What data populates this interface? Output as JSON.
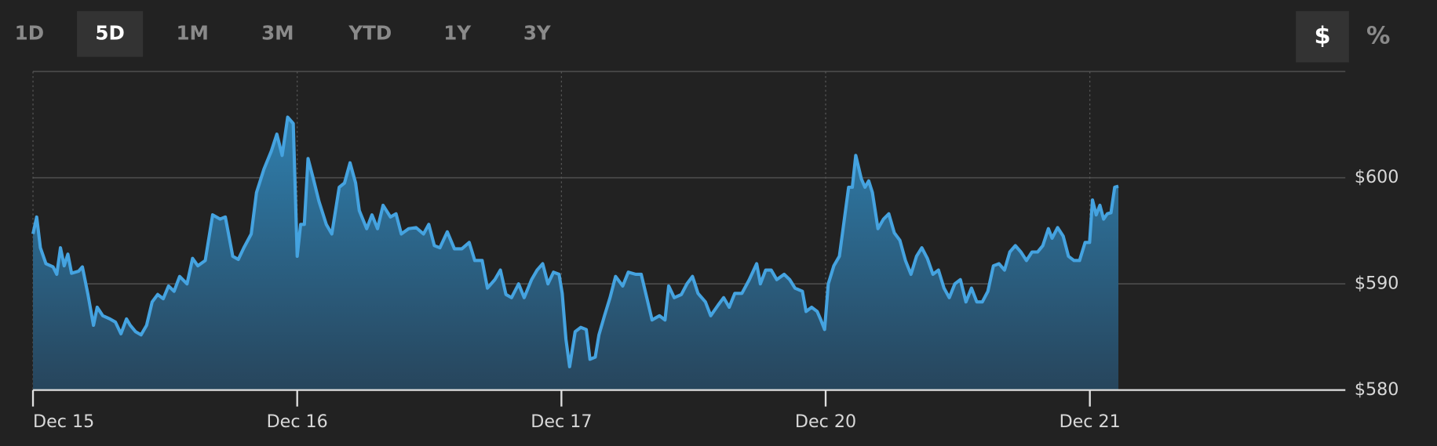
{
  "tabs": [
    "1D",
    "5D",
    "1M",
    "3M",
    "YTD",
    "1Y",
    "3Y"
  ],
  "selected_tab": 1,
  "units": [
    "$",
    "%"
  ],
  "selected_unit": 0,
  "chart_data": {
    "type": "area",
    "color": "#45a3e0",
    "grid": true,
    "xlim": [
      0,
      4.967
    ],
    "ylim": [
      580,
      610
    ],
    "xticks": [
      {
        "value": 0,
        "label": "Dec 15"
      },
      {
        "value": 1,
        "label": "Dec 16"
      },
      {
        "value": 2,
        "label": "Dec 17"
      },
      {
        "value": 3,
        "label": "Dec 20"
      },
      {
        "value": 4,
        "label": "Dec 21"
      }
    ],
    "yticks": [
      {
        "value": 580,
        "label": "$580"
      },
      {
        "value": 590,
        "label": "$590"
      },
      {
        "value": 600,
        "label": "$600"
      }
    ],
    "x": [
      0,
      0.014,
      0.028,
      0.049,
      0.076,
      0.09,
      0.104,
      0.118,
      0.132,
      0.146,
      0.173,
      0.187,
      0.208,
      0.229,
      0.243,
      0.264,
      0.291,
      0.312,
      0.333,
      0.354,
      0.368,
      0.388,
      0.409,
      0.43,
      0.451,
      0.472,
      0.493,
      0.513,
      0.534,
      0.555,
      0.583,
      0.604,
      0.624,
      0.652,
      0.68,
      0.708,
      0.728,
      0.756,
      0.777,
      0.798,
      0.826,
      0.846,
      0.874,
      0.902,
      0.923,
      0.943,
      0.964,
      0.985,
      1,
      1.013,
      1.027,
      1.041,
      1.061,
      1.082,
      1.11,
      1.131,
      1.159,
      1.179,
      1.2,
      1.221,
      1.235,
      1.263,
      1.283,
      1.304,
      1.325,
      1.353,
      1.374,
      1.394,
      1.422,
      1.45,
      1.478,
      1.498,
      1.519,
      1.54,
      1.568,
      1.595,
      1.623,
      1.651,
      1.672,
      1.7,
      1.72,
      1.748,
      1.769,
      1.79,
      1.811,
      1.838,
      1.859,
      1.887,
      1.908,
      1.929,
      1.949,
      1.97,
      1.991,
      2.003,
      2.017,
      2.031,
      2.052,
      2.073,
      2.094,
      2.108,
      2.128,
      2.142,
      2.163,
      2.184,
      2.205,
      2.232,
      2.253,
      2.281,
      2.302,
      2.323,
      2.343,
      2.371,
      2.392,
      2.406,
      2.427,
      2.454,
      2.475,
      2.496,
      2.517,
      2.545,
      2.565,
      2.593,
      2.614,
      2.635,
      2.656,
      2.683,
      2.711,
      2.739,
      2.753,
      2.773,
      2.794,
      2.815,
      2.843,
      2.864,
      2.884,
      2.912,
      2.926,
      2.947,
      2.968,
      2.982,
      2.996,
      3.01,
      3.031,
      3.052,
      3.066,
      3.087,
      3.101,
      3.114,
      3.135,
      3.149,
      3.163,
      3.177,
      3.198,
      3.219,
      3.239,
      3.26,
      3.281,
      3.302,
      3.323,
      3.344,
      3.364,
      3.385,
      3.406,
      3.427,
      3.448,
      3.468,
      3.489,
      3.51,
      3.531,
      3.552,
      3.572,
      3.593,
      3.614,
      3.635,
      3.656,
      3.677,
      3.697,
      3.718,
      3.739,
      3.76,
      3.781,
      3.802,
      3.822,
      3.843,
      3.857,
      3.878,
      3.899,
      3.919,
      3.94,
      3.961,
      3.982,
      3.999,
      4.01,
      4.024,
      4.038,
      4.052,
      4.066,
      4.08,
      4.094,
      4.108
    ],
    "values": [
      594.7,
      596.3,
      593.4,
      591.9,
      591.6,
      590.9,
      593.4,
      591.7,
      592.8,
      591,
      591.2,
      591.6,
      589,
      586.1,
      587.8,
      587,
      586.7,
      586.4,
      585.3,
      586.7,
      586.1,
      585.5,
      585.2,
      586.1,
      588.3,
      589,
      588.6,
      589.8,
      589.3,
      590.7,
      590,
      592.4,
      591.7,
      592.2,
      596.5,
      596.1,
      596.3,
      592.6,
      592.3,
      593.4,
      594.7,
      598.6,
      600.8,
      602.5,
      604.1,
      602.1,
      605.7,
      605.1,
      592.6,
      595.6,
      595.6,
      601.8,
      599.9,
      597.8,
      595.6,
      594.7,
      599.1,
      599.5,
      601.4,
      599.5,
      596.9,
      595.2,
      596.5,
      595.2,
      597.4,
      596.3,
      596.6,
      594.7,
      595.2,
      595.3,
      594.7,
      595.6,
      593.6,
      593.4,
      594.9,
      593.3,
      593.3,
      593.9,
      592.2,
      592.2,
      589.6,
      590.4,
      591.3,
      589,
      588.7,
      590,
      588.7,
      590.4,
      591.3,
      591.9,
      590,
      591.1,
      590.9,
      589.1,
      584.8,
      582.2,
      585.5,
      585.9,
      585.7,
      582.9,
      583.1,
      585.2,
      587,
      588.7,
      590.7,
      589.8,
      591.1,
      590.9,
      590.9,
      588.7,
      586.6,
      587,
      586.6,
      589.8,
      588.7,
      589,
      590,
      590.7,
      589.1,
      588.3,
      587,
      588,
      588.7,
      587.8,
      589.1,
      589.1,
      590.4,
      591.9,
      590,
      591.3,
      591.3,
      590.4,
      590.9,
      590.4,
      589.6,
      589.3,
      587.4,
      587.8,
      587.4,
      586.6,
      585.7,
      590,
      591.7,
      592.6,
      595.2,
      599.1,
      599.1,
      602.1,
      599.9,
      599.1,
      599.7,
      598.6,
      595.2,
      596.1,
      596.6,
      594.8,
      594.1,
      592.2,
      590.9,
      592.6,
      593.4,
      592.4,
      590.9,
      591.3,
      589.6,
      588.7,
      590,
      590.4,
      588.3,
      589.6,
      588.3,
      588.3,
      589.3,
      591.7,
      591.9,
      591.3,
      593,
      593.6,
      593,
      592.2,
      593,
      593,
      593.6,
      595.2,
      594.3,
      595.3,
      594.5,
      592.6,
      592.2,
      592.2,
      593.9,
      593.9,
      597.9,
      596.5,
      597.4,
      596.1,
      596.6,
      596.7,
      599.1,
      599.2
    ]
  }
}
